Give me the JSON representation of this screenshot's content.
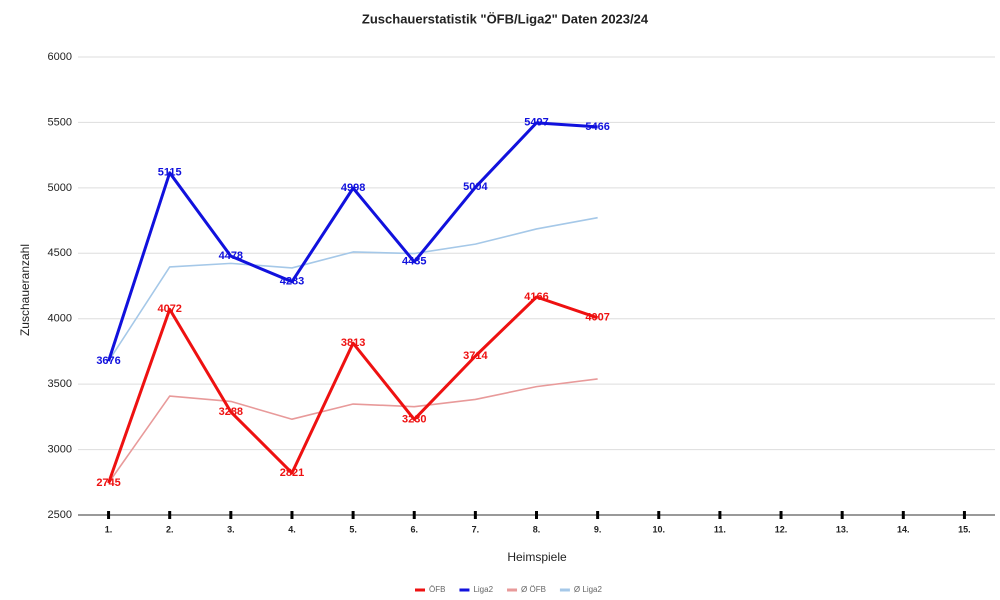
{
  "chart_data": {
    "type": "line",
    "title": "Zuschauerstatistik \"ÖFB/Liga2\" Daten 2023/24",
    "x_label": "Heimspiele",
    "y_label": "Zuschaueranzahl",
    "categories": [
      "1.",
      "2.",
      "3.",
      "4.",
      "5.",
      "6.",
      "7.",
      "8.",
      "9.",
      "10.",
      "11.",
      "12.",
      "13.",
      "14.",
      "15."
    ],
    "series": [
      {
        "name": "ÖFB",
        "color": "#ee1111",
        "width": 3,
        "labels": true,
        "values": [
          2745,
          4072,
          3288,
          2821,
          3813,
          3230,
          3714,
          4166,
          4007,
          null,
          null,
          null,
          null,
          null,
          null
        ]
      },
      {
        "name": "Liga2",
        "color": "#1111dd",
        "width": 3,
        "labels": true,
        "values": [
          3676,
          5115,
          4478,
          4283,
          4998,
          4435,
          5004,
          5497,
          5466,
          null,
          null,
          null,
          null,
          null,
          null
        ]
      },
      {
        "name": "Ø ÖFB",
        "color": "#e89a9a",
        "width": 1.6,
        "labels": false,
        "values": [
          2745,
          3409,
          3368,
          3232,
          3348,
          3328,
          3383,
          3481,
          3540,
          null,
          null,
          null,
          null,
          null,
          null
        ]
      },
      {
        "name": "Ø Liga2",
        "color": "#a5c8e8",
        "width": 1.6,
        "labels": false,
        "values": [
          3676,
          4396,
          4423,
          4388,
          4510,
          4498,
          4570,
          4686,
          4772,
          null,
          null,
          null,
          null,
          null,
          null
        ]
      }
    ],
    "ylim": [
      2500,
      6000
    ],
    "yticks": [
      2500,
      3000,
      3500,
      4000,
      4500,
      5000,
      5500,
      6000
    ],
    "grid": true,
    "legend": "bottom"
  }
}
